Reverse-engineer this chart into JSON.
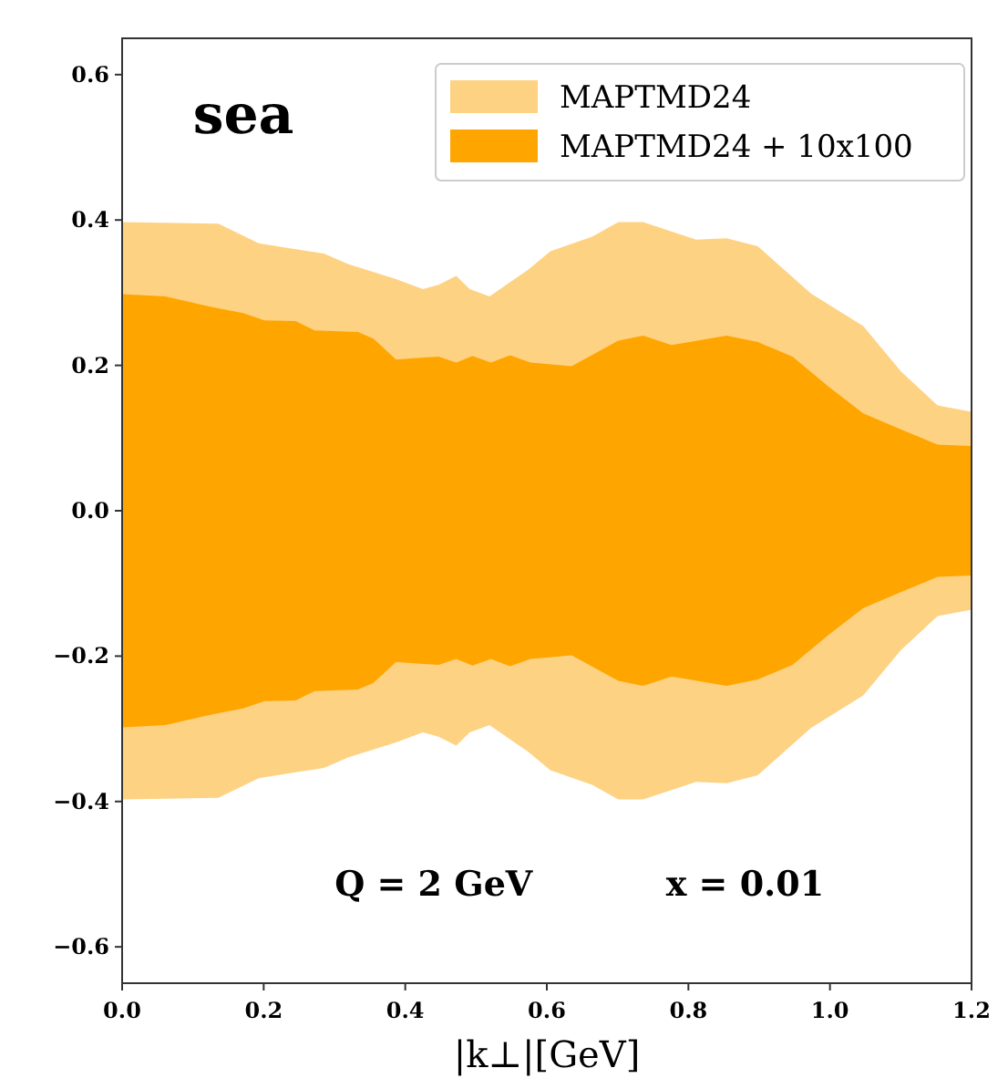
{
  "chart_data": {
    "type": "area",
    "title": "sea",
    "xlabel": "|k⊥|[GeV]",
    "annotations": [
      "Q = 2 GeV",
      "x = 0.01"
    ],
    "xlim": [
      0,
      1.2
    ],
    "ylim": [
      -0.65,
      0.65
    ],
    "xticks": [
      {
        "value": 0,
        "label": "0.0"
      },
      0.2,
      0.4,
      0.6,
      0.8,
      {
        "value": 1,
        "label": "1.0"
      },
      1.2
    ],
    "yticks": [
      {
        "value": -0.6,
        "label": "−0.6"
      },
      {
        "value": -0.4,
        "label": "−0.4"
      },
      {
        "value": -0.2,
        "label": "−0.2"
      },
      {
        "value": 0,
        "label": "0.0"
      },
      0.2,
      0.4,
      0.6
    ],
    "grid": false,
    "legend": "top right",
    "series": [
      {
        "name": "MAPTMD24",
        "color": "#fed283",
        "x": [
          0,
          0.136,
          0.193,
          0.237,
          0.285,
          0.32,
          0.386,
          0.425,
          0.447,
          0.472,
          0.491,
          0.519,
          0.574,
          0.605,
          0.664,
          0.701,
          0.736,
          0.811,
          0.854,
          0.898,
          0.973,
          1.047,
          1.1,
          1.152,
          1.2
        ],
        "values": [
          0.397,
          0.395,
          0.368,
          0.361,
          0.354,
          0.339,
          0.319,
          0.305,
          0.311,
          0.323,
          0.305,
          0.295,
          0.332,
          0.357,
          0.377,
          0.397,
          0.397,
          0.373,
          0.375,
          0.364,
          0.299,
          0.254,
          0.192,
          0.145,
          0.136
        ]
      },
      {
        "color": "#fed283",
        "x": [
          0,
          0.136,
          0.193,
          0.237,
          0.285,
          0.32,
          0.386,
          0.425,
          0.447,
          0.472,
          0.491,
          0.519,
          0.574,
          0.605,
          0.664,
          0.701,
          0.736,
          0.811,
          0.854,
          0.898,
          0.973,
          1.047,
          1.1,
          1.152,
          1.2
        ],
        "values": [
          -0.397,
          -0.395,
          -0.368,
          -0.361,
          -0.354,
          -0.339,
          -0.319,
          -0.305,
          -0.311,
          -0.323,
          -0.305,
          -0.295,
          -0.332,
          -0.357,
          -0.377,
          -0.397,
          -0.397,
          -0.373,
          -0.375,
          -0.364,
          -0.299,
          -0.254,
          -0.192,
          -0.145,
          -0.136
        ]
      },
      {
        "name": "MAPTMD24 + 10x100",
        "color": "#ffa500",
        "x": [
          0,
          0.061,
          0.123,
          0.171,
          0.201,
          0.245,
          0.272,
          0.333,
          0.355,
          0.387,
          0.412,
          0.447,
          0.472,
          0.495,
          0.521,
          0.548,
          0.577,
          0.635,
          0.701,
          0.736,
          0.776,
          0.854,
          0.898,
          0.947,
          0.999,
          1.047,
          1.1,
          1.152,
          1.2
        ],
        "values": [
          0.298,
          0.295,
          0.281,
          0.272,
          0.262,
          0.261,
          0.248,
          0.246,
          0.237,
          0.208,
          0.21,
          0.212,
          0.204,
          0.213,
          0.204,
          0.214,
          0.204,
          0.199,
          0.234,
          0.241,
          0.228,
          0.241,
          0.232,
          0.212,
          0.17,
          0.134,
          0.112,
          0.091,
          0.089
        ]
      },
      {
        "color": "#ffa500",
        "x": [
          0,
          0.061,
          0.123,
          0.171,
          0.201,
          0.245,
          0.272,
          0.333,
          0.355,
          0.387,
          0.412,
          0.447,
          0.472,
          0.495,
          0.521,
          0.548,
          0.577,
          0.635,
          0.701,
          0.736,
          0.776,
          0.854,
          0.898,
          0.947,
          0.999,
          1.047,
          1.1,
          1.152,
          1.2
        ],
        "values": [
          -0.298,
          -0.295,
          -0.281,
          -0.272,
          -0.262,
          -0.261,
          -0.248,
          -0.246,
          -0.237,
          -0.208,
          -0.21,
          -0.212,
          -0.204,
          -0.213,
          -0.204,
          -0.214,
          -0.204,
          -0.199,
          -0.234,
          -0.241,
          -0.228,
          -0.241,
          -0.232,
          -0.212,
          -0.17,
          -0.134,
          -0.112,
          -0.091,
          -0.089
        ]
      }
    ]
  }
}
